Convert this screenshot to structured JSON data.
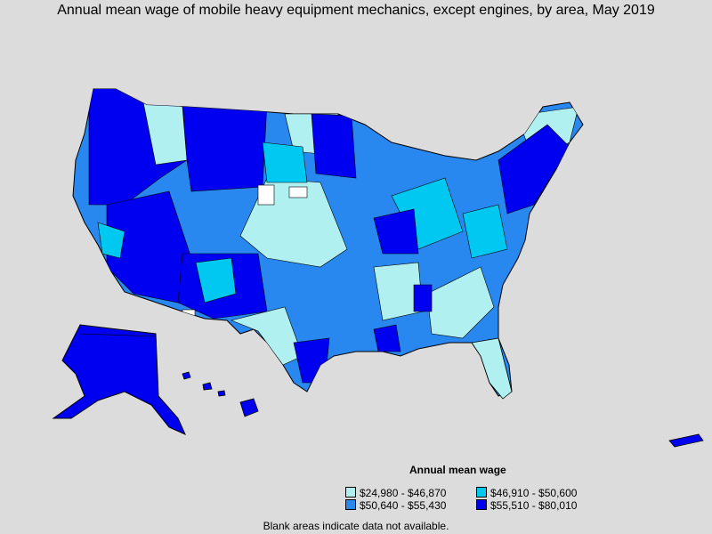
{
  "title": "Annual mean wage of mobile heavy equipment mechanics, except engines, by area, May 2019",
  "legend": {
    "title": "Annual mean wage",
    "items": [
      {
        "label": "$24,980 - $46,870",
        "color": "#b0f0f0"
      },
      {
        "label": "$46,910 - $50,600",
        "color": "#00c8f0"
      },
      {
        "label": "$50,640 - $55,430",
        "color": "#2888f0"
      },
      {
        "label": "$55,510 - $80,010",
        "color": "#0000f0"
      }
    ]
  },
  "footnote": "Blank areas indicate data not available.",
  "colors": {
    "background": "#dcdcdc",
    "no_data": "#ffffff",
    "border": "#000000"
  }
}
